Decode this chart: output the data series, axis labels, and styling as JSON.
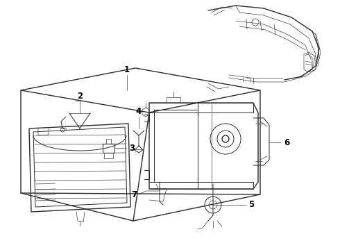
{
  "bg_color": "#ffffff",
  "line_color": "#2a2a2a",
  "label_color": "#000000",
  "figsize": [
    4.9,
    3.6
  ],
  "dpi": 100,
  "lw_main": 1.0,
  "lw_med": 0.7,
  "lw_thin": 0.45,
  "font_size": 8.5,
  "font_weight": "bold"
}
